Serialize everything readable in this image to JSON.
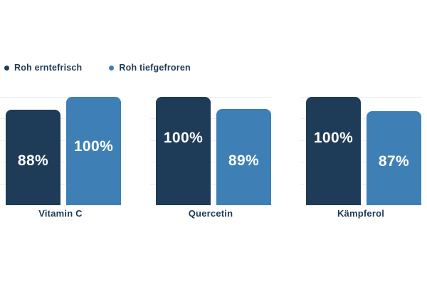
{
  "legend": {
    "items": [
      {
        "label": "Roh erntefrisch",
        "color": "#1e3c58"
      },
      {
        "label": "Roh tiefgefroren",
        "color": "#3e80b5"
      }
    ]
  },
  "chart_data": {
    "type": "bar",
    "categories": [
      "Vitamin C",
      "Quercetin",
      "Kämpferol"
    ],
    "series": [
      {
        "name": "Roh erntefrisch",
        "color": "#1e3c58",
        "values": [
          88,
          100,
          100
        ]
      },
      {
        "name": "Roh tiefgefroren",
        "color": "#3e80b5",
        "values": [
          100,
          89,
          87
        ]
      }
    ],
    "value_labels": [
      [
        "88%",
        "100%"
      ],
      [
        "100%",
        "89%"
      ],
      [
        "100%",
        "87%"
      ]
    ],
    "unit": "%",
    "ylim": [
      0,
      100
    ],
    "grid": {
      "visible": true,
      "interval_percent": 20,
      "color": "#e9eef2"
    },
    "legend_position": "top-left",
    "title": "",
    "xlabel": "",
    "ylabel": ""
  },
  "colors": {
    "background": "#ffffff",
    "text_navy": "#1d3a56",
    "bar_dark": "#1e3c58",
    "bar_blue": "#3e80b5",
    "value_text": "#ffffff",
    "gridline": "#e9eef2"
  }
}
